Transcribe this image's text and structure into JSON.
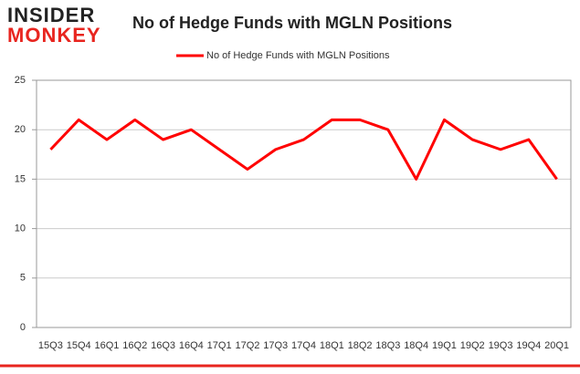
{
  "logo": {
    "top": "INSIDER",
    "bottom": "MONKEY"
  },
  "chart_data": {
    "type": "line",
    "title": "No of Hedge Funds with MGLN Positions",
    "categories": [
      "15Q3",
      "15Q4",
      "16Q1",
      "16Q2",
      "16Q3",
      "16Q4",
      "17Q1",
      "17Q2",
      "17Q3",
      "17Q4",
      "18Q1",
      "18Q2",
      "18Q3",
      "18Q4",
      "19Q1",
      "19Q2",
      "19Q3",
      "19Q4",
      "20Q1"
    ],
    "series": [
      {
        "name": "No of Hedge Funds with MGLN Positions",
        "color": "#ff0000",
        "values": [
          18,
          21,
          19,
          21,
          19,
          20,
          18,
          16,
          18,
          19,
          21,
          21,
          20,
          15,
          21,
          19,
          18,
          19,
          15
        ]
      }
    ],
    "ylim": [
      0,
      25
    ],
    "yticks": [
      0,
      5,
      10,
      15,
      20,
      25
    ],
    "grid": true,
    "legend": "top"
  }
}
